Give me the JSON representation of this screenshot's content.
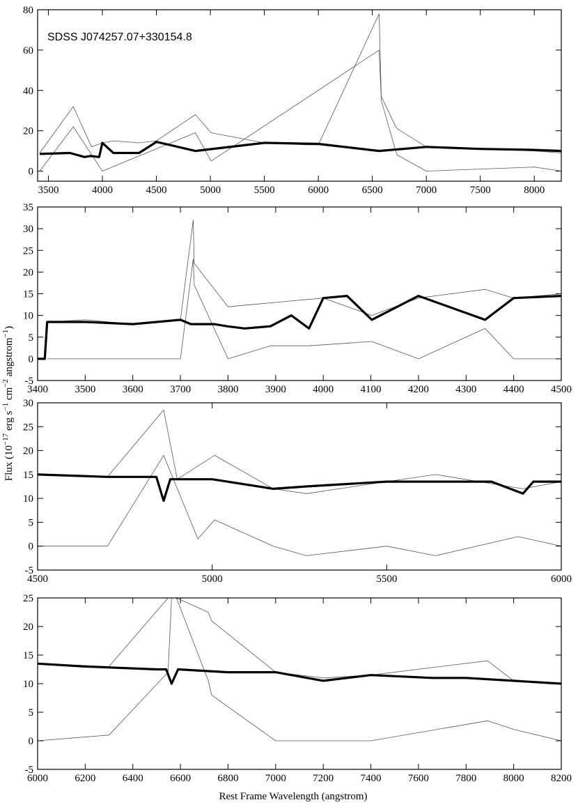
{
  "figure": {
    "annotation": "SDSS J074257.07+330154.8",
    "ylabel": "Flux  (10",
    "ylabel_exp": "−17",
    "ylabel_tail": " erg s",
    "ylabel_exp2": "−1",
    "ylabel_tail2": " cm",
    "ylabel_exp3": "−2",
    "ylabel_tail3": " angstrom",
    "ylabel_exp4": "−1",
    "ylabel_end": ")",
    "xlabel": "Rest Frame Wavelength  (angstrom)"
  },
  "chart_data": [
    {
      "type": "line",
      "panel": "overview",
      "xlim": [
        3400,
        8250
      ],
      "ylim": [
        -5,
        80
      ],
      "xticks": [
        3500,
        4000,
        4500,
        5000,
        5500,
        6000,
        6500,
        7000,
        7500,
        8000
      ],
      "yticks": [
        0,
        20,
        40,
        60,
        80
      ],
      "series": [
        {
          "role": "observed spectrum",
          "color": "#555555",
          "x": [
            3420,
            3730,
            3900,
            4000,
            4102,
            4340,
            4500,
            4861,
            5007,
            5500,
            5890,
            6000,
            6563,
            6583,
            6717,
            6731,
            7000,
            7500,
            8000,
            8250
          ],
          "y": [
            9,
            32,
            12,
            14,
            15,
            14,
            15,
            28,
            19,
            14,
            13,
            13,
            78,
            37,
            22,
            21,
            12,
            11,
            10,
            9
          ]
        },
        {
          "role": "model fit",
          "color": "#000000",
          "x": [
            3420,
            3700,
            3835,
            3889,
            3970,
            4000,
            4102,
            4340,
            4500,
            4861,
            5500,
            6000,
            6563,
            7000,
            7500,
            8000,
            8250
          ],
          "y": [
            8.5,
            9,
            7,
            7.5,
            7,
            14,
            9,
            9,
            14.5,
            10,
            14,
            13.5,
            10,
            12,
            11,
            10.5,
            10
          ]
        },
        {
          "role": "residual",
          "color": "#555555",
          "x": [
            3420,
            3730,
            4000,
            4861,
            5007,
            6563,
            6583,
            6717,
            6731,
            7000,
            8000,
            8250
          ],
          "y": [
            0,
            22,
            0,
            19,
            5,
            60,
            35,
            10,
            8,
            0,
            2,
            0
          ]
        }
      ]
    },
    {
      "type": "line",
      "panel": "3400-4500",
      "xlim": [
        3400,
        4500
      ],
      "ylim": [
        -5,
        35
      ],
      "xticks": [
        3400,
        3500,
        3600,
        3700,
        3800,
        3900,
        4000,
        4100,
        4200,
        4300,
        4400,
        4500
      ],
      "yticks": [
        -5,
        0,
        5,
        10,
        15,
        20,
        25,
        30,
        35
      ],
      "series": [
        {
          "role": "model fit",
          "color": "#000000",
          "x": [
            3400,
            3415,
            3420,
            3500,
            3600,
            3700,
            3722,
            3734,
            3750,
            3771,
            3798,
            3835,
            3889,
            3933,
            3970,
            4000,
            4050,
            4102,
            4200,
            4340,
            4400,
            4500
          ],
          "y": [
            0,
            0,
            8.5,
            8.5,
            8,
            9,
            8,
            8,
            8,
            8,
            7.5,
            7,
            7.5,
            10,
            7,
            14,
            14.5,
            9,
            14.5,
            9,
            14,
            14.5
          ]
        },
        {
          "role": "observed spectrum",
          "color": "#555555",
          "x": [
            3420,
            3500,
            3600,
            3700,
            3727,
            3729,
            3800,
            3900,
            4000,
            4102,
            4200,
            4340,
            4400,
            4500
          ],
          "y": [
            8.5,
            9,
            8,
            9,
            32,
            22,
            12,
            13,
            14,
            10,
            14,
            16,
            14,
            15
          ]
        },
        {
          "role": "residual",
          "color": "#555555",
          "x": [
            3420,
            3500,
            3600,
            3700,
            3727,
            3729,
            3800,
            3889,
            3970,
            4102,
            4200,
            4340,
            4400,
            4500
          ],
          "y": [
            0,
            0,
            0,
            0,
            23,
            17,
            0,
            3,
            3,
            4,
            0,
            7,
            0,
            0
          ]
        }
      ]
    },
    {
      "type": "line",
      "panel": "4500-6000",
      "xlim": [
        4500,
        6000
      ],
      "ylim": [
        -5,
        30
      ],
      "xticks": [
        4500,
        5000,
        5500,
        6000
      ],
      "yticks": [
        -5,
        0,
        5,
        10,
        15,
        20,
        25,
        30
      ],
      "series": [
        {
          "role": "model fit",
          "color": "#000000",
          "x": [
            4500,
            4700,
            4840,
            4861,
            4880,
            5000,
            5175,
            5270,
            5500,
            5800,
            5890,
            5920,
            6000
          ],
          "y": [
            15,
            14.5,
            14.5,
            9.5,
            14,
            14,
            12,
            12.5,
            13.5,
            13.5,
            11,
            13.5,
            13.5
          ]
        },
        {
          "role": "observed spectrum",
          "color": "#555555",
          "x": [
            4500,
            4700,
            4861,
            4900,
            5007,
            5175,
            5270,
            5500,
            5640,
            5890,
            6000
          ],
          "y": [
            15,
            14.5,
            28.5,
            14,
            19,
            12,
            11,
            13.5,
            15,
            12,
            13.5
          ]
        },
        {
          "role": "residual",
          "color": "#555555",
          "x": [
            4500,
            4700,
            4861,
            4959,
            5007,
            5175,
            5270,
            5500,
            5640,
            5876,
            6000
          ],
          "y": [
            0,
            0,
            19,
            1.5,
            5.5,
            0,
            -2,
            0,
            -2,
            2,
            0
          ]
        }
      ]
    },
    {
      "type": "line",
      "panel": "6000-8200",
      "xlim": [
        6000,
        8200
      ],
      "ylim": [
        -5,
        25
      ],
      "xticks": [
        6000,
        6200,
        6400,
        6600,
        6800,
        7000,
        7200,
        7400,
        7600,
        7800,
        8000,
        8200
      ],
      "yticks": [
        -5,
        0,
        5,
        10,
        15,
        20,
        25
      ],
      "series": [
        {
          "role": "model fit",
          "color": "#000000",
          "x": [
            6000,
            6200,
            6500,
            6540,
            6563,
            6590,
            6800,
            7000,
            7200,
            7400,
            7660,
            7800,
            8000,
            8200
          ],
          "y": [
            13.5,
            13,
            12.5,
            12.5,
            10,
            12.5,
            12,
            12,
            10.5,
            11.5,
            11,
            11,
            10.5,
            10
          ]
        },
        {
          "role": "observed spectrum",
          "color": "#555555",
          "x": [
            6000,
            6300,
            6548,
            6563,
            6583,
            6717,
            6731,
            7000,
            7200,
            7400,
            7890,
            8000,
            8200
          ],
          "y": [
            13.5,
            13,
            25,
            25,
            25,
            22.5,
            21,
            12,
            11,
            11.5,
            14,
            10.5,
            10
          ]
        },
        {
          "role": "residual",
          "color": "#555555",
          "x": [
            6000,
            6300,
            6548,
            6563,
            6583,
            6717,
            6731,
            7000,
            7400,
            7890,
            8000,
            8200
          ],
          "y": [
            0,
            1,
            12,
            25,
            25,
            10.5,
            8,
            0,
            0,
            3.5,
            2,
            0
          ]
        }
      ]
    }
  ]
}
